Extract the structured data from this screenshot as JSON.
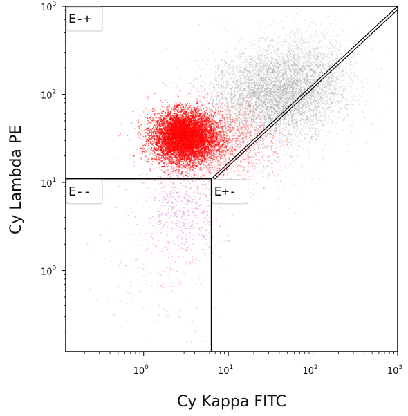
{
  "chart_data": {
    "type": "scatter",
    "x_axis": {
      "label": "Cy Kappa FITC",
      "scale": "log",
      "range": [
        0.12,
        1000
      ],
      "ticks": [
        {
          "value": 1,
          "base": "10",
          "exp": "0"
        },
        {
          "value": 10,
          "base": "10",
          "exp": "1"
        },
        {
          "value": 100,
          "base": "10",
          "exp": "2"
        },
        {
          "value": 1000,
          "base": "10",
          "exp": "3"
        }
      ]
    },
    "y_axis": {
      "label": "Cy Lambda PE",
      "scale": "log",
      "range": [
        0.12,
        1000
      ],
      "ticks": [
        {
          "value": 1,
          "base": "10",
          "exp": "0"
        },
        {
          "value": 10,
          "base": "10",
          "exp": "1"
        },
        {
          "value": 100,
          "base": "10",
          "exp": "2"
        },
        {
          "value": 1000,
          "base": "10",
          "exp": "3"
        }
      ]
    },
    "gates": [
      {
        "label": "E-+"
      },
      {
        "label": "E--"
      },
      {
        "label": "E+-"
      }
    ],
    "gate_thresholds": {
      "x": 6.3,
      "y": 11
    },
    "diagonal": [
      [
        6.3,
        11
      ],
      [
        1000,
        1000
      ]
    ],
    "populations": [
      {
        "color": "#ff0000",
        "count": 9000,
        "center": [
          3.0,
          33
        ],
        "spread": [
          0.18,
          0.14
        ],
        "opacity": 0.55
      },
      {
        "color": "#ff2020",
        "count": 2500,
        "center": [
          6.0,
          30
        ],
        "spread": [
          0.35,
          0.22
        ],
        "opacity": 0.35
      },
      {
        "color": "#9a9a9a",
        "count": 6000,
        "center": [
          35,
          100
        ],
        "spread": [
          0.38,
          0.25
        ],
        "opacity": 0.28
      },
      {
        "color": "#9a9a9a",
        "count": 1500,
        "center": [
          90,
          200
        ],
        "spread": [
          0.3,
          0.25
        ],
        "opacity": 0.22
      },
      {
        "color": "#d070d0",
        "count": 500,
        "center": [
          3.0,
          5.0
        ],
        "spread": [
          0.22,
          0.25
        ],
        "opacity": 0.45
      },
      {
        "color": "#ff6060",
        "count": 250,
        "center": [
          1.5,
          1.5
        ],
        "spread": [
          0.35,
          0.45
        ],
        "opacity": 0.35
      },
      {
        "color": "#c080e0",
        "count": 250,
        "center": [
          30,
          20
        ],
        "spread": [
          0.3,
          0.25
        ],
        "opacity": 0.3
      }
    ]
  }
}
